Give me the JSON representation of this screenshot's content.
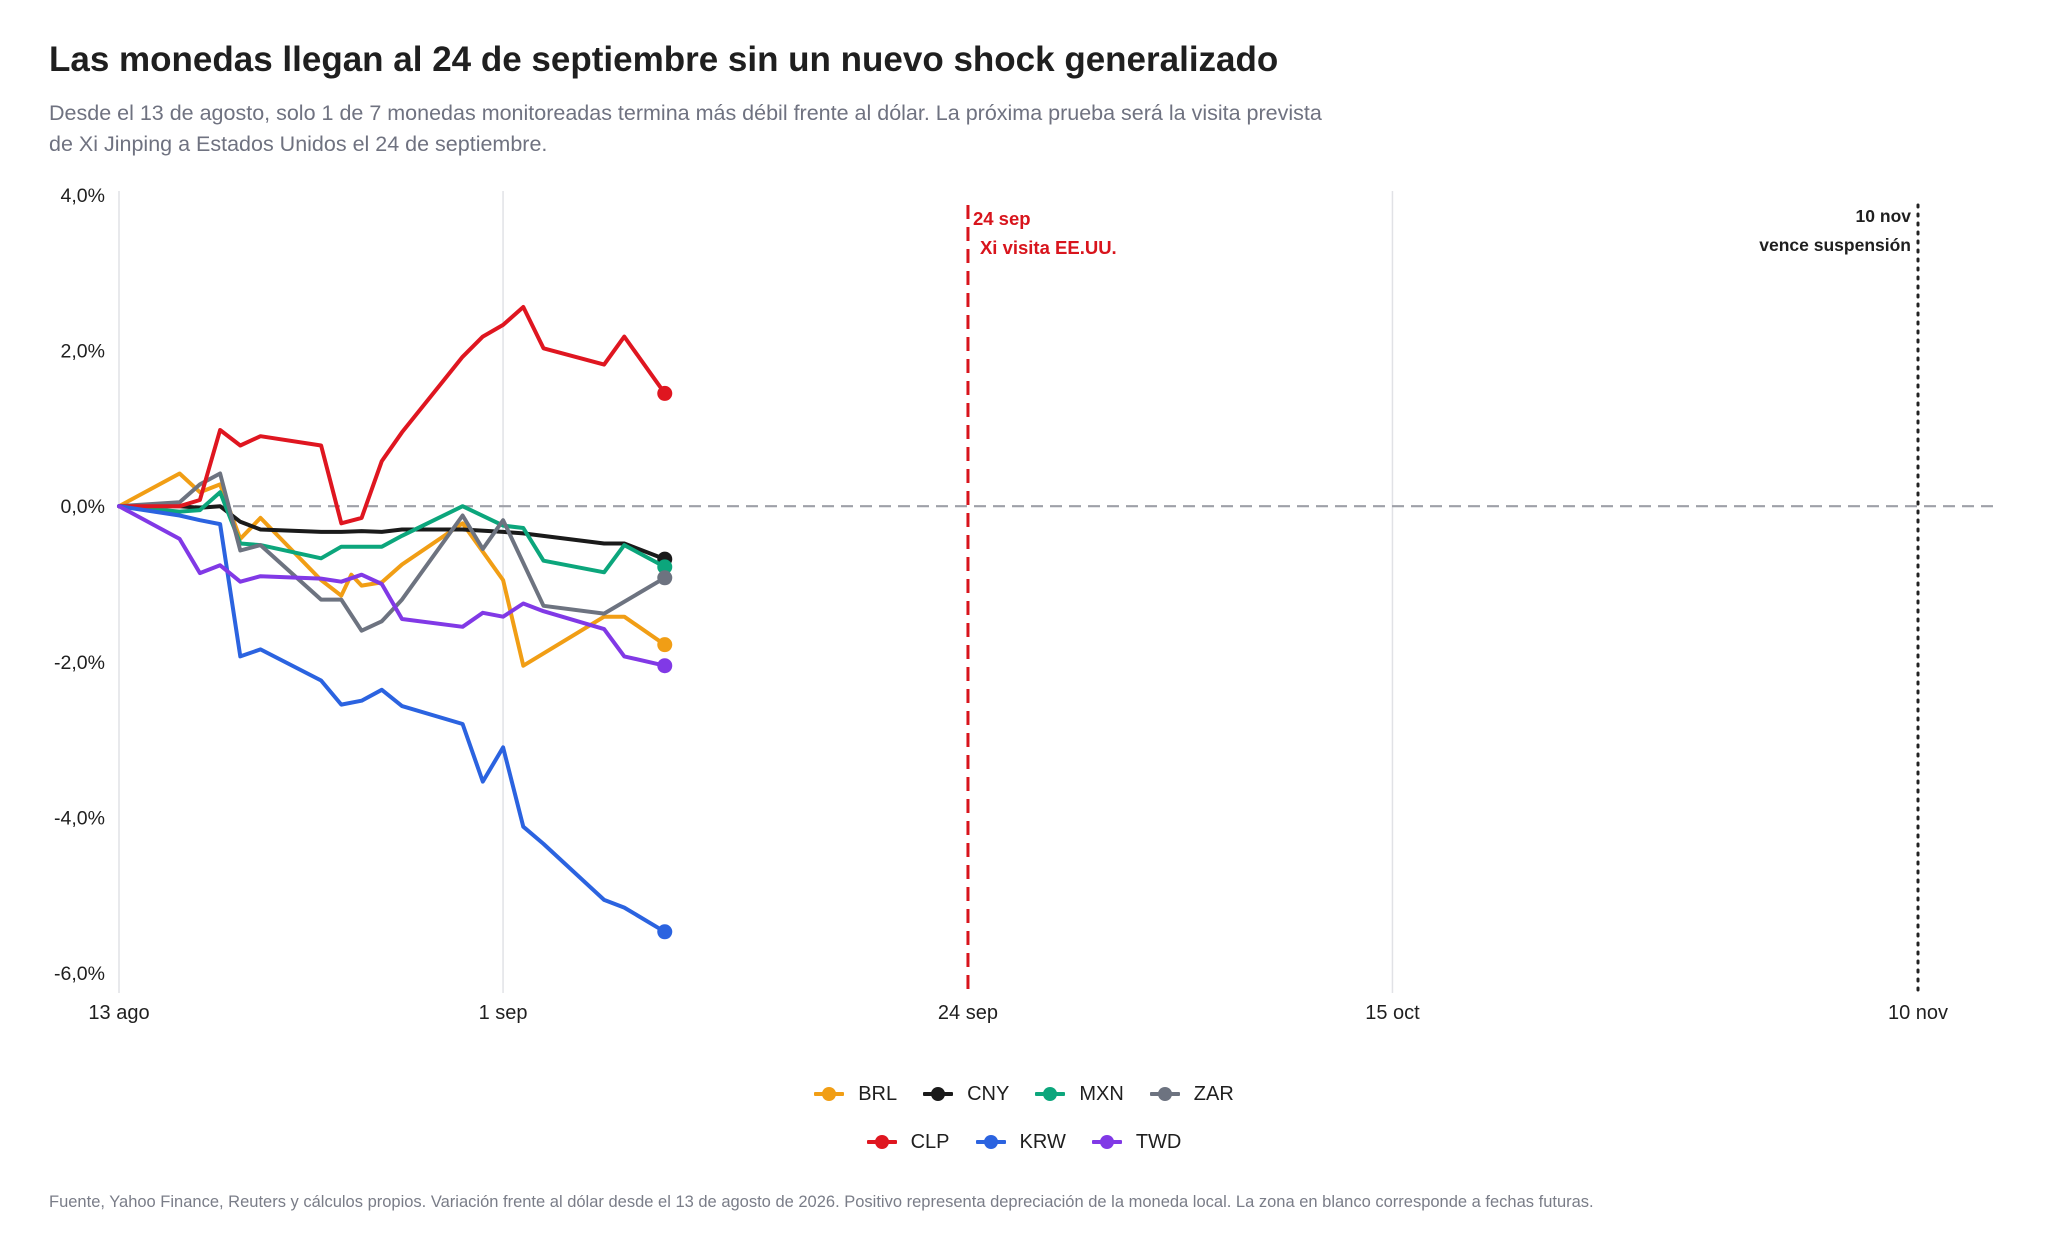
{
  "title": "Las monedas llegan al 24 de septiembre sin un nuevo shock generalizado",
  "subtitle": "Desde el 13 de agosto, solo 1 de 7 monedas monitoreadas termina más débil frente al dólar. La próxima prueba será la visita prevista de Xi Jinping a Estados Unidos el 24 de septiembre.",
  "footer": "Fuente, Yahoo Finance, Reuters y cálculos propios. Variación frente al dólar desde el 13 de agosto de 2026. Positivo representa depreciación de la moneda local. La zona en blanco corresponde a fechas futuras.",
  "chart_data": {
    "type": "line",
    "title": "Las monedas llegan al 24 de septiembre sin un nuevo shock generalizado",
    "xlabel": "",
    "ylabel": "",
    "x_axis": {
      "start": "2026-08-13",
      "end": "2026-11-13",
      "ticks": [
        {
          "date": "2026-08-13",
          "label": "13 ago"
        },
        {
          "date": "2026-09-01",
          "label": "1 sep"
        },
        {
          "date": "2026-09-24",
          "label": "24 sep"
        },
        {
          "date": "2026-10-15",
          "label": "15 oct"
        },
        {
          "date": "2026-11-10",
          "label": "10 nov"
        }
      ]
    },
    "y_axis": {
      "range": [
        -6.3,
        4.0
      ],
      "ticks": [
        4,
        2,
        0,
        -2,
        -4,
        -6
      ],
      "tick_labels": [
        "4,0%",
        "2,0%",
        "0,0%",
        "-2,0%",
        "-4,0%",
        "-6,0%"
      ]
    },
    "grid": "vertical at date ticks",
    "legend_position": "bottom",
    "reference_lines": [
      {
        "type": "horizontal",
        "y": 0,
        "style": "dashed",
        "color": "#9ea0a8"
      },
      {
        "type": "vertical",
        "date": "2026-09-24",
        "style": "dashed",
        "color": "#d8141c",
        "label_lines": [
          "24 sep",
          "Xi visita EE.UU."
        ]
      },
      {
        "type": "vertical",
        "date": "2026-11-10",
        "style": "dotted",
        "color": "#222222",
        "label_lines": [
          "10 nov",
          "vence suspensión"
        ]
      }
    ],
    "series": [
      {
        "name": "BRL",
        "color": "#f19e15",
        "points": [
          [
            "2026-08-13",
            0.0
          ],
          [
            "2026-08-16",
            0.42
          ],
          [
            "2026-08-17",
            0.18
          ],
          [
            "2026-08-18",
            0.28
          ],
          [
            "2026-08-19",
            -0.42
          ],
          [
            "2026-08-20",
            -0.15
          ],
          [
            "2026-08-23",
            -0.95
          ],
          [
            "2026-08-24",
            -1.15
          ],
          [
            "2026-08-24",
            -0.88
          ],
          [
            "2026-08-25",
            -1.02
          ],
          [
            "2026-08-26",
            -0.98
          ],
          [
            "2026-08-27",
            -0.75
          ],
          [
            "2026-08-30",
            -0.22
          ],
          [
            "2026-09-01",
            -0.95
          ],
          [
            "2026-09-02",
            -2.05
          ],
          [
            "2026-09-06",
            -1.42
          ],
          [
            "2026-09-07",
            -1.42
          ],
          [
            "2026-09-09",
            -1.78
          ]
        ]
      },
      {
        "name": "CNY",
        "color": "#1a1a1a",
        "points": [
          [
            "2026-08-13",
            0.0
          ],
          [
            "2026-08-16",
            0.0
          ],
          [
            "2026-08-17",
            -0.02
          ],
          [
            "2026-08-18",
            0.0
          ],
          [
            "2026-08-19",
            -0.2
          ],
          [
            "2026-08-20",
            -0.3
          ],
          [
            "2026-08-23",
            -0.33
          ],
          [
            "2026-08-24",
            -0.33
          ],
          [
            "2026-08-25",
            -0.32
          ],
          [
            "2026-08-26",
            -0.33
          ],
          [
            "2026-08-27",
            -0.3
          ],
          [
            "2026-08-30",
            -0.3
          ],
          [
            "2026-09-01",
            -0.33
          ],
          [
            "2026-09-02",
            -0.35
          ],
          [
            "2026-09-06",
            -0.48
          ],
          [
            "2026-09-07",
            -0.48
          ],
          [
            "2026-09-09",
            -0.68
          ]
        ]
      },
      {
        "name": "MXN",
        "color": "#0ca67c",
        "points": [
          [
            "2026-08-13",
            0.0
          ],
          [
            "2026-08-16",
            -0.07
          ],
          [
            "2026-08-17",
            -0.05
          ],
          [
            "2026-08-18",
            0.18
          ],
          [
            "2026-08-19",
            -0.48
          ],
          [
            "2026-08-20",
            -0.5
          ],
          [
            "2026-08-23",
            -0.67
          ],
          [
            "2026-08-24",
            -0.52
          ],
          [
            "2026-08-25",
            -0.52
          ],
          [
            "2026-08-26",
            -0.52
          ],
          [
            "2026-08-27",
            -0.38
          ],
          [
            "2026-08-30",
            0.0
          ],
          [
            "2026-09-01",
            -0.25
          ],
          [
            "2026-09-02",
            -0.28
          ],
          [
            "2026-09-03",
            -0.7
          ],
          [
            "2026-09-06",
            -0.85
          ],
          [
            "2026-09-07",
            -0.5
          ],
          [
            "2026-09-09",
            -0.78
          ]
        ]
      },
      {
        "name": "ZAR",
        "color": "#6d7380",
        "points": [
          [
            "2026-08-13",
            0.0
          ],
          [
            "2026-08-16",
            0.05
          ],
          [
            "2026-08-17",
            0.28
          ],
          [
            "2026-08-18",
            0.42
          ],
          [
            "2026-08-19",
            -0.57
          ],
          [
            "2026-08-20",
            -0.5
          ],
          [
            "2026-08-23",
            -1.2
          ],
          [
            "2026-08-24",
            -1.2
          ],
          [
            "2026-08-25",
            -1.6
          ],
          [
            "2026-08-26",
            -1.48
          ],
          [
            "2026-08-27",
            -1.2
          ],
          [
            "2026-08-30",
            -0.12
          ],
          [
            "2026-08-31",
            -0.55
          ],
          [
            "2026-09-01",
            -0.18
          ],
          [
            "2026-09-03",
            -1.28
          ],
          [
            "2026-09-06",
            -1.38
          ],
          [
            "2026-09-09",
            -0.92
          ]
        ]
      },
      {
        "name": "CLP",
        "color": "#df1620",
        "points": [
          [
            "2026-08-13",
            0.0
          ],
          [
            "2026-08-16",
            0.0
          ],
          [
            "2026-08-17",
            0.08
          ],
          [
            "2026-08-18",
            0.98
          ],
          [
            "2026-08-19",
            0.78
          ],
          [
            "2026-08-20",
            0.9
          ],
          [
            "2026-08-23",
            0.78
          ],
          [
            "2026-08-24",
            -0.22
          ],
          [
            "2026-08-25",
            -0.15
          ],
          [
            "2026-08-26",
            0.58
          ],
          [
            "2026-08-27",
            0.95
          ],
          [
            "2026-08-30",
            1.92
          ],
          [
            "2026-08-31",
            2.18
          ],
          [
            "2026-09-01",
            2.33
          ],
          [
            "2026-09-02",
            2.56
          ],
          [
            "2026-09-03",
            2.03
          ],
          [
            "2026-09-06",
            1.82
          ],
          [
            "2026-09-07",
            2.18
          ],
          [
            "2026-09-09",
            1.45
          ]
        ]
      },
      {
        "name": "KRW",
        "color": "#2b63e0",
        "points": [
          [
            "2026-08-13",
            0.0
          ],
          [
            "2026-08-16",
            -0.12
          ],
          [
            "2026-08-17",
            -0.18
          ],
          [
            "2026-08-18",
            -0.23
          ],
          [
            "2026-08-19",
            -1.93
          ],
          [
            "2026-08-20",
            -1.84
          ],
          [
            "2026-08-23",
            -2.24
          ],
          [
            "2026-08-24",
            -2.55
          ],
          [
            "2026-08-25",
            -2.5
          ],
          [
            "2026-08-26",
            -2.36
          ],
          [
            "2026-08-27",
            -2.57
          ],
          [
            "2026-08-30",
            -2.8
          ],
          [
            "2026-08-31",
            -3.54
          ],
          [
            "2026-09-01",
            -3.1
          ],
          [
            "2026-09-02",
            -4.12
          ],
          [
            "2026-09-03",
            -4.34
          ],
          [
            "2026-09-06",
            -5.06
          ],
          [
            "2026-09-07",
            -5.16
          ],
          [
            "2026-09-09",
            -5.47
          ]
        ]
      },
      {
        "name": "TWD",
        "color": "#8139e6",
        "points": [
          [
            "2026-08-13",
            0.0
          ],
          [
            "2026-08-16",
            -0.42
          ],
          [
            "2026-08-17",
            -0.86
          ],
          [
            "2026-08-18",
            -0.76
          ],
          [
            "2026-08-19",
            -0.97
          ],
          [
            "2026-08-20",
            -0.9
          ],
          [
            "2026-08-23",
            -0.93
          ],
          [
            "2026-08-24",
            -0.97
          ],
          [
            "2026-08-25",
            -0.88
          ],
          [
            "2026-08-26",
            -1.0
          ],
          [
            "2026-08-27",
            -1.45
          ],
          [
            "2026-08-30",
            -1.55
          ],
          [
            "2026-08-31",
            -1.37
          ],
          [
            "2026-09-01",
            -1.42
          ],
          [
            "2026-09-02",
            -1.25
          ],
          [
            "2026-09-03",
            -1.35
          ],
          [
            "2026-09-06",
            -1.58
          ],
          [
            "2026-09-07",
            -1.93
          ],
          [
            "2026-09-09",
            -2.05
          ]
        ]
      }
    ]
  },
  "legend": {
    "rows": [
      [
        "BRL",
        "CNY",
        "MXN",
        "ZAR"
      ],
      [
        "CLP",
        "KRW",
        "TWD"
      ]
    ]
  }
}
